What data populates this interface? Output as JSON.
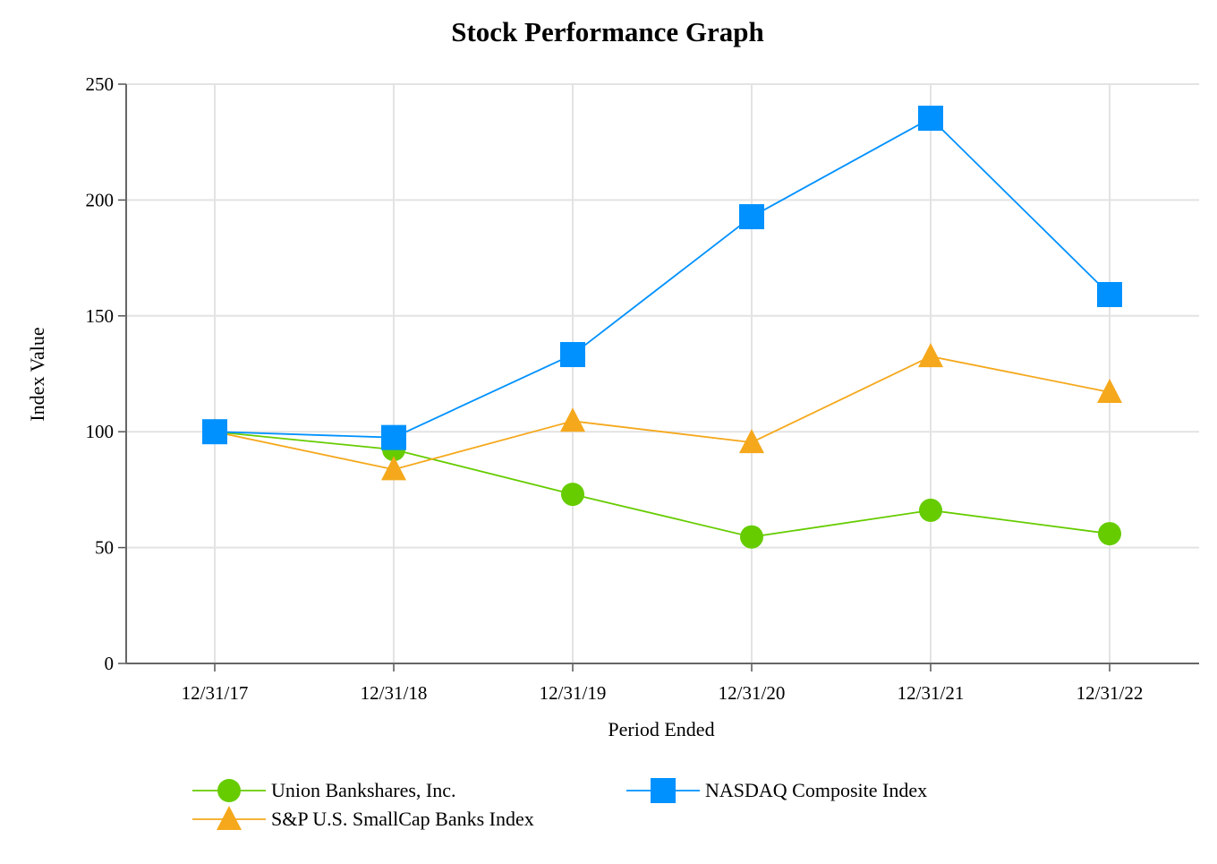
{
  "chart_data": {
    "type": "line",
    "title": "Stock Performance Graph",
    "xlabel": "Period Ended",
    "ylabel": "Index Value",
    "categories": [
      "12/31/17",
      "12/31/18",
      "12/31/19",
      "12/31/20",
      "12/31/21",
      "12/31/22"
    ],
    "ylim": [
      0,
      250
    ],
    "yticks": [
      0,
      50,
      100,
      150,
      200,
      250
    ],
    "grid": true,
    "legend_position": "bottom",
    "series": [
      {
        "name": "Union Bankshares, Inc.",
        "marker": "circle",
        "color": "#66cc00",
        "values": [
          100,
          92.3,
          73.0,
          54.6,
          66.1,
          56.0
        ]
      },
      {
        "name": "NASDAQ Composite Index",
        "marker": "square",
        "color": "#0091ff",
        "values": [
          100,
          97.5,
          133.3,
          192.8,
          235.3,
          159.2
        ]
      },
      {
        "name": "S&P U.S. SmallCap Banks Index",
        "marker": "triangle",
        "color": "#f5a81c",
        "values": [
          100,
          83.7,
          104.6,
          95.4,
          132.5,
          117.1
        ]
      }
    ]
  }
}
